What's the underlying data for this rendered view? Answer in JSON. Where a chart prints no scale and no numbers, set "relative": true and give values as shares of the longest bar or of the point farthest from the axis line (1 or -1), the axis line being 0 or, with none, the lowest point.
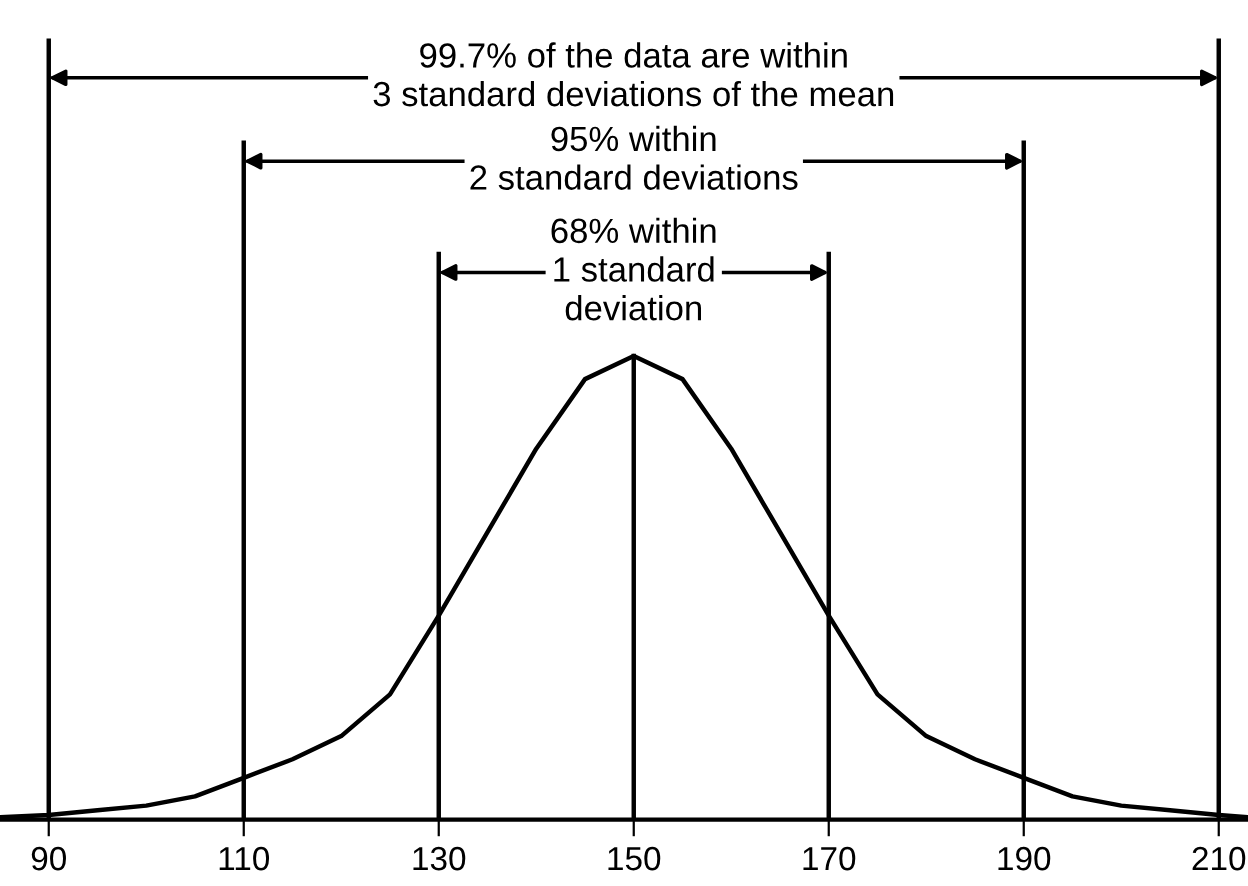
{
  "chart_data": {
    "type": "line",
    "relative": true,
    "series": [
      {
        "color": "#000000",
        "x": [
          85,
          90,
          95,
          100,
          105,
          110,
          115,
          120,
          125,
          130,
          135,
          140,
          145,
          150,
          155,
          160,
          165,
          170,
          175,
          180,
          185,
          190,
          195,
          200,
          205,
          210,
          213
        ],
        "values": [
          0.005,
          0.01,
          0.02,
          0.03,
          0.05,
          0.09,
          0.13,
          0.18,
          0.27,
          0.44,
          0.62,
          0.8,
          0.95,
          1.0,
          0.95,
          0.8,
          0.62,
          0.44,
          0.27,
          0.18,
          0.13,
          0.09,
          0.05,
          0.03,
          0.02,
          0.01,
          0.005
        ]
      }
    ],
    "xlim": [
      85,
      213
    ],
    "xticks": [
      90,
      110,
      130,
      150,
      170,
      190,
      210
    ],
    "ref_lines": [
      {
        "axis": "x",
        "value": 90,
        "color": "#000000"
      },
      {
        "axis": "x",
        "value": 210,
        "color": "#000000"
      },
      {
        "axis": "x",
        "value": 110,
        "color": "#000000"
      },
      {
        "axis": "x",
        "value": 190,
        "color": "#000000"
      },
      {
        "axis": "x",
        "value": 130,
        "color": "#000000"
      },
      {
        "axis": "x",
        "value": 170,
        "color": "#000000"
      },
      {
        "axis": "x",
        "value": 150,
        "color": "#000000"
      }
    ],
    "annotations": [
      "99.7% of the data are within\n3 standard deviations of the mean",
      "95% within\n2 standard deviations",
      "68% within\n1 standard\ndeviation"
    ],
    "grid": false,
    "legend": false,
    "marker": "none",
    "line_style": "solid"
  }
}
